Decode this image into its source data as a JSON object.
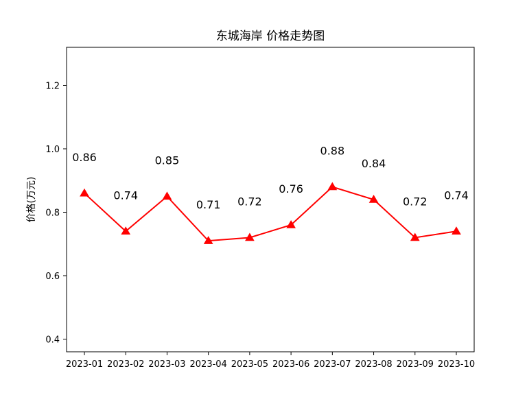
{
  "chart_data": {
    "type": "line",
    "title": "东城海岸 价格走势图",
    "xlabel": "",
    "ylabel": "价格(万元)",
    "categories": [
      "2023-01",
      "2023-02",
      "2023-03",
      "2023-04",
      "2023-05",
      "2023-06",
      "2023-07",
      "2023-08",
      "2023-09",
      "2023-10"
    ],
    "series": [
      {
        "values": [
          0.86,
          0.74,
          0.85,
          0.71,
          0.72,
          0.76,
          0.88,
          0.84,
          0.72,
          0.74
        ],
        "color": "#ff0000",
        "marker": "triangle-up"
      }
    ],
    "data_labels": [
      "0.86",
      "0.74",
      "0.85",
      "0.71",
      "0.72",
      "0.76",
      "0.88",
      "0.84",
      "0.72",
      "0.74"
    ],
    "ylim": [
      0.36,
      1.32
    ],
    "yticks": [
      0.4,
      0.6,
      0.8,
      1.0,
      1.2
    ],
    "ytick_labels": [
      "0.4",
      "0.6",
      "0.8",
      "1.0",
      "1.2"
    ],
    "grid": false,
    "legend": "none"
  }
}
